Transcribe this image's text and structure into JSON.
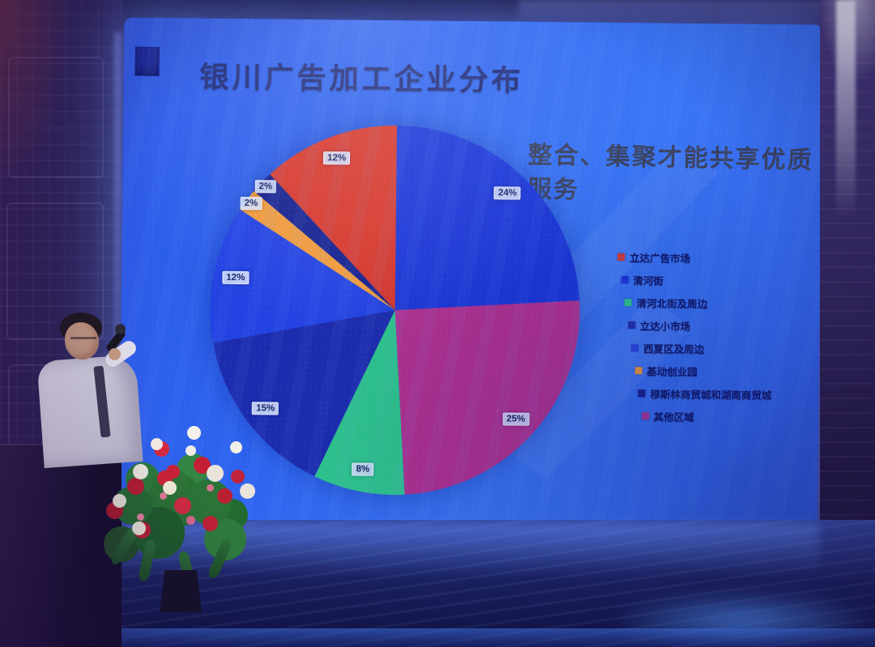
{
  "screen": {
    "title": "银川广告加工企业分布",
    "headline": "整合、集聚才能共享优质服务"
  },
  "chart_data": {
    "type": "pie",
    "title": "银川广告加工企业分布",
    "legend_position": "right",
    "series": [
      {
        "name": "立达广告市场",
        "value": 12,
        "label": "12%",
        "color": "#d6382d"
      },
      {
        "name": "清河街",
        "value": 24,
        "label": "24%",
        "color": "#1b36d8"
      },
      {
        "name": "清河北街及周边",
        "value": 8,
        "label": "8%",
        "color": "#2fc78d"
      },
      {
        "name": "立达小市场",
        "value": 15,
        "label": "15%",
        "color": "#1c2cae"
      },
      {
        "name": "西夏区及周边",
        "value": 12,
        "label": "12%",
        "color": "#2342e2"
      },
      {
        "name": "基动创业园",
        "value": 2,
        "label": "2%",
        "color": "#ef9a3d"
      },
      {
        "name": "穆斯林商贸城和湖南商贸城",
        "value": 2,
        "label": "2%",
        "color": "#15208f"
      },
      {
        "name": "其他区域",
        "value": 25,
        "label": "25%",
        "color": "#b23190"
      }
    ],
    "draw_order_clockwise_from_top": [
      1,
      7,
      2,
      3,
      4,
      5,
      6,
      0
    ]
  }
}
